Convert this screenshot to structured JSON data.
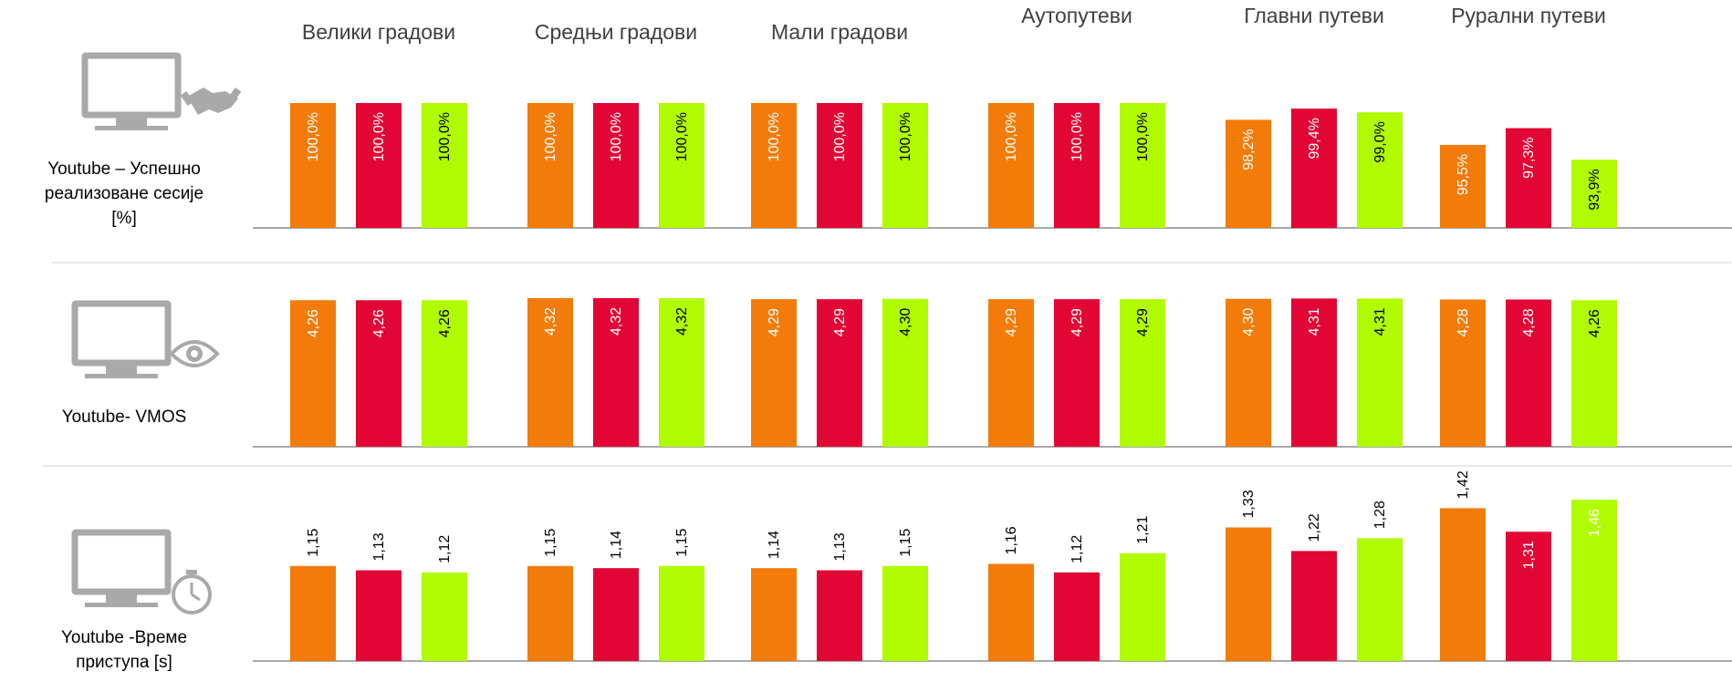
{
  "colors": {
    "orange": "#f37b0a",
    "red": "#e20635",
    "lime": "#b1fb00",
    "gray": "#a9a9a9"
  },
  "icons": [
    "monitor-handshake-icon",
    "monitor-eye-icon",
    "monitor-stopwatch-icon"
  ],
  "chart_data": {
    "type": "bar",
    "categories": [
      "Велики градови",
      "Средњи градови",
      "Мали градови",
      "Аутопутеви",
      "Главни путеви",
      "Рурални путеви"
    ],
    "panels": [
      {
        "label": "Youtube – Успешно реализоване сесије [%]",
        "label_lines": [
          "Youtube – Успешно",
          "реализоване сесије",
          "[%]"
        ],
        "icon": "monitor-handshake-icon",
        "ylim": [
          90,
          100
        ],
        "series": [
          {
            "name": "series-1",
            "color": "#f37b0a",
            "values": [
              100.0,
              100.0,
              100.0,
              100.0,
              98.2,
              95.5
            ],
            "labels": [
              "100,0%",
              "100,0%",
              "100,0%",
              "100,0%",
              "98,2%",
              "95,5%"
            ]
          },
          {
            "name": "series-2",
            "color": "#e20635",
            "values": [
              100.0,
              100.0,
              100.0,
              100.0,
              99.4,
              97.3
            ],
            "labels": [
              "100,0%",
              "100,0%",
              "100,0%",
              "100,0%",
              "99,4%",
              "97,3%"
            ]
          },
          {
            "name": "series-3",
            "color": "#b1fb00",
            "values": [
              100.0,
              100.0,
              100.0,
              100.0,
              99.0,
              93.9
            ],
            "labels": [
              "100,0%",
              "100,0%",
              "100,0%",
              "100,0%",
              "99,0%",
              "93,9%"
            ]
          }
        ]
      },
      {
        "label": "Youtube- VMOS",
        "label_lines": [
          "Youtube- VMOS"
        ],
        "icon": "monitor-eye-icon",
        "ylim": [
          0,
          4.32
        ],
        "series": [
          {
            "name": "series-1",
            "color": "#f37b0a",
            "values": [
              4.26,
              4.32,
              4.29,
              4.29,
              4.3,
              4.28
            ],
            "labels": [
              "4,26",
              "4,32",
              "4,29",
              "4,29",
              "4,30",
              "4,28"
            ]
          },
          {
            "name": "series-2",
            "color": "#e20635",
            "values": [
              4.26,
              4.32,
              4.29,
              4.29,
              4.31,
              4.28
            ],
            "labels": [
              "4,26",
              "4,32",
              "4,29",
              "4,29",
              "4,31",
              "4,28"
            ]
          },
          {
            "name": "series-3",
            "color": "#b1fb00",
            "values": [
              4.26,
              4.32,
              4.3,
              4.29,
              4.31,
              4.26
            ],
            "labels": [
              "4,26",
              "4,32",
              "4,30",
              "4,29",
              "4,31",
              "4,26"
            ]
          }
        ]
      },
      {
        "label": "Youtube -Време приступа [s]",
        "label_lines": [
          "Youtube -Време",
          "приступа [s]"
        ],
        "icon": "monitor-stopwatch-icon",
        "ylim": [
          0.8,
          1.46
        ],
        "series": [
          {
            "name": "series-1",
            "color": "#f37b0a",
            "values": [
              1.15,
              1.15,
              1.14,
              1.16,
              1.33,
              1.42
            ],
            "labels": [
              "1,15",
              "1,15",
              "1,14",
              "1,16",
              "1,33",
              "1,42"
            ]
          },
          {
            "name": "series-2",
            "color": "#e20635",
            "values": [
              1.13,
              1.14,
              1.13,
              1.12,
              1.22,
              1.31
            ],
            "labels": [
              "1,13",
              "1,14",
              "1,13",
              "1,12",
              "1,22",
              "1,31"
            ]
          },
          {
            "name": "series-3",
            "color": "#b1fb00",
            "values": [
              1.12,
              1.15,
              1.15,
              1.21,
              1.28,
              1.46
            ],
            "labels": [
              "1,12",
              "1,15",
              "1,15",
              "1,21",
              "1,28",
              "1,46"
            ]
          }
        ]
      }
    ]
  }
}
